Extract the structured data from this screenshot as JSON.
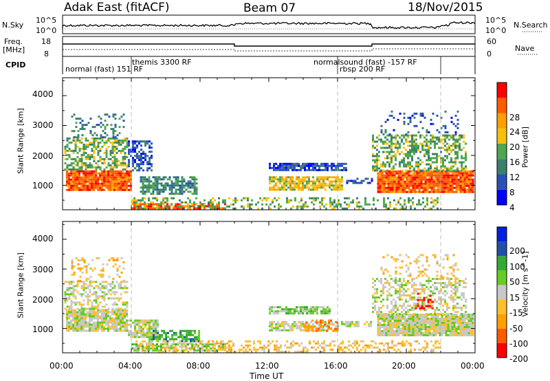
{
  "header": {
    "station": "Adak East (fitACF)",
    "beam": "Beam 07",
    "date": "18/Nov/2015"
  },
  "summary": {
    "nsky_label": "N.Sky",
    "nsky_top": "10^5",
    "nsky_bottom": "10^0",
    "nsearch_top": "10^5",
    "nsearch_bottom": "10^0",
    "nsearch_label": "N.Search",
    "freq_label_line1": "Freq.",
    "freq_label_line2": "[MHz]",
    "freq_top": "18",
    "freq_bottom": "8",
    "nave_top": "60",
    "nave_bottom": "0",
    "nave_label": "Nave",
    "cpid_label": "CPID"
  },
  "cpid_segments": [
    {
      "label": "normal (fast)  151 RF",
      "start": 0,
      "end": 4.0
    },
    {
      "label": "themis 3300 RF",
      "start": 4.0,
      "end": 16.0
    },
    {
      "label": "normalsound (fast)  -157 RF",
      "start": 16.0,
      "end": 22.0
    },
    {
      "label": "rbsp 200 RF",
      "start": 16.0,
      "end": 22.0
    }
  ],
  "axes": {
    "y_label": "Slant Range [km]",
    "y_ticks": [
      "1000",
      "2000",
      "3000",
      "4000"
    ],
    "x_label": "Time UT",
    "x_ticks": [
      "00:00",
      "04:00",
      "08:00",
      "12:00",
      "16:00",
      "20:00",
      "00:00"
    ]
  },
  "colors": {
    "power": [
      "#0000ff",
      "#2a50b8",
      "#39806e",
      "#4ea64e",
      "#f7c00a",
      "#ff9f00",
      "#ff5a00",
      "#ff0000"
    ],
    "velocity": [
      "#ff0000",
      "#ff5a00",
      "#ff9f00",
      "#ffc02a",
      "#c8c8c8",
      "#66cc22",
      "#33aa33",
      "#2050a8",
      "#0020e0"
    ]
  },
  "chart_data": [
    {
      "type": "heatmap",
      "title": "",
      "xlabel": "Time UT",
      "ylabel": "Slant Range [km]",
      "colorbar_label": "Power [dB]",
      "colorbar_ticks": [
        "4",
        "8",
        "12",
        "16",
        "20",
        "24",
        "28"
      ],
      "xlim": [
        0,
        24
      ],
      "ylim": [
        180,
        4600
      ],
      "blobs": [
        {
          "t0": 0.2,
          "t1": 4.0,
          "r0": 850,
          "r1": 1500,
          "level": 6,
          "density": 0.95
        },
        {
          "t0": 0.1,
          "t1": 3.8,
          "r0": 1500,
          "r1": 2600,
          "level": 3,
          "density": 0.55
        },
        {
          "t0": 0.5,
          "t1": 3.6,
          "r0": 2600,
          "r1": 3400,
          "level": 2,
          "density": 0.25
        },
        {
          "t0": 3.8,
          "t1": 5.2,
          "r0": 1500,
          "r1": 2500,
          "level": 1,
          "density": 0.6
        },
        {
          "t0": 4.5,
          "t1": 7.8,
          "r0": 700,
          "r1": 1300,
          "level": 2,
          "density": 0.75
        },
        {
          "t0": 4.0,
          "t1": 9.5,
          "r0": 250,
          "r1": 400,
          "level": 6,
          "density": 0.7
        },
        {
          "t0": 4.0,
          "t1": 22.0,
          "r0": 200,
          "r1": 600,
          "level": 3,
          "density": 0.3
        },
        {
          "t0": 12.0,
          "t1": 16.5,
          "r0": 1500,
          "r1": 1750,
          "level": 1,
          "density": 0.8
        },
        {
          "t0": 12.0,
          "t1": 16.3,
          "r0": 850,
          "r1": 1300,
          "level": 4,
          "density": 0.8
        },
        {
          "t0": 16.5,
          "t1": 18.0,
          "r0": 1050,
          "r1": 1250,
          "level": 1,
          "density": 0.5
        },
        {
          "t0": 18.3,
          "t1": 23.9,
          "r0": 800,
          "r1": 1500,
          "level": 6,
          "density": 0.95
        },
        {
          "t0": 18.0,
          "t1": 23.5,
          "r0": 1500,
          "r1": 2700,
          "level": 3,
          "density": 0.5
        },
        {
          "t0": 18.5,
          "t1": 23.0,
          "r0": 2700,
          "r1": 3500,
          "level": 1,
          "density": 0.2
        }
      ]
    },
    {
      "type": "heatmap",
      "title": "",
      "xlabel": "Time UT",
      "ylabel": "Slant Range [km]",
      "colorbar_label": "Velocity [m s^-1]",
      "colorbar_ticks": [
        "-200",
        "-100",
        "-50",
        "-15",
        "15",
        "50",
        "100",
        "200"
      ],
      "xlim": [
        0,
        24
      ],
      "ylim": [
        180,
        4600
      ],
      "blobs": [
        {
          "t0": 0.2,
          "t1": 3.8,
          "r0": 900,
          "r1": 1650,
          "level": 4,
          "density": 0.9
        },
        {
          "t0": 0.1,
          "t1": 3.8,
          "r0": 1650,
          "r1": 2600,
          "level": 4,
          "density": 0.5
        },
        {
          "t0": 0.5,
          "t1": 3.6,
          "r0": 2600,
          "r1": 3400,
          "level": 3,
          "density": 0.2
        },
        {
          "t0": 3.8,
          "t1": 5.5,
          "r0": 700,
          "r1": 1300,
          "level": 4,
          "density": 0.8
        },
        {
          "t0": 5.0,
          "t1": 8.0,
          "r0": 550,
          "r1": 950,
          "level": 6,
          "density": 0.6
        },
        {
          "t0": 4.0,
          "t1": 9.5,
          "r0": 250,
          "r1": 500,
          "level": 5,
          "density": 0.65
        },
        {
          "t0": 4.0,
          "t1": 22.0,
          "r0": 200,
          "r1": 600,
          "level": 3,
          "density": 0.35
        },
        {
          "t0": 12.0,
          "t1": 15.5,
          "r0": 1500,
          "r1": 1750,
          "level": 5,
          "density": 0.8
        },
        {
          "t0": 12.0,
          "t1": 16.0,
          "r0": 950,
          "r1": 1250,
          "level": 4,
          "density": 0.75
        },
        {
          "t0": 14.0,
          "t1": 16.0,
          "r0": 950,
          "r1": 1300,
          "level": 2,
          "density": 0.45
        },
        {
          "t0": 16.2,
          "t1": 18.0,
          "r0": 1050,
          "r1": 1250,
          "level": 4,
          "density": 0.6
        },
        {
          "t0": 18.3,
          "t1": 23.9,
          "r0": 800,
          "r1": 1500,
          "level": 4,
          "density": 0.95
        },
        {
          "t0": 18.0,
          "t1": 23.5,
          "r0": 1500,
          "r1": 2700,
          "level": 4,
          "density": 0.45
        },
        {
          "t0": 20.5,
          "t1": 21.5,
          "r0": 1700,
          "r1": 2200,
          "level": 0,
          "density": 0.4
        },
        {
          "t0": 18.5,
          "t1": 23.0,
          "r0": 2700,
          "r1": 3500,
          "level": 3,
          "density": 0.2
        }
      ]
    }
  ]
}
